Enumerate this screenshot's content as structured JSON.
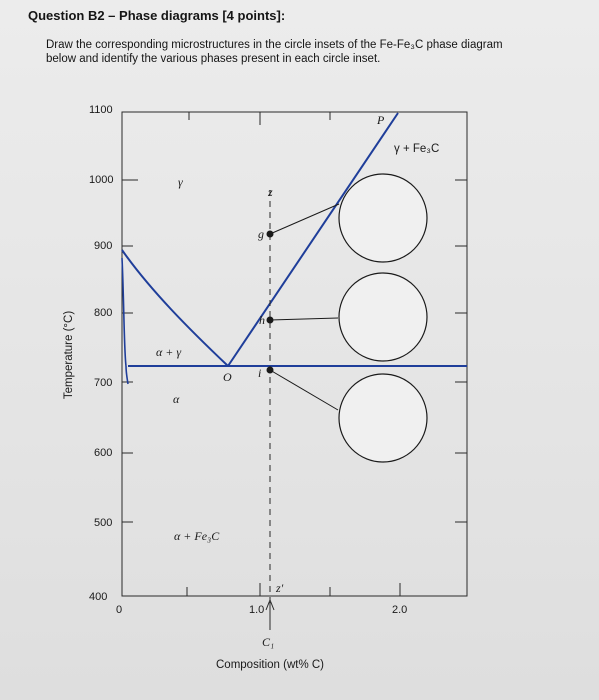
{
  "question": {
    "title": "Question B2 – Phase diagrams [4 points]:",
    "line1": "Draw the corresponding microstructures in the circle insets of the Fe-Fe₃C phase diagram",
    "line2": "below and identify the various phases present in each circle inset."
  },
  "chart_data": {
    "type": "diagram",
    "title": "",
    "xlabel": "Composition (wt% C)",
    "ylabel": "Temperature (°C)",
    "xlim": [
      0,
      2.5
    ],
    "ylim": [
      400,
      1100
    ],
    "x_ticks": [
      "0",
      "1.0",
      "2.0"
    ],
    "y_ticks": [
      "1100",
      "1000",
      "900",
      "800",
      "700",
      "600",
      "500",
      "400"
    ],
    "phase_labels": {
      "gamma": "γ",
      "gamma_fe3c": "γ + Fe₃C",
      "alpha_gamma": "α + γ",
      "alpha": "α",
      "alpha_fe3c": "α + Fe₃C"
    },
    "point_labels": {
      "P": "P",
      "O": "O",
      "g": "g",
      "h": "h",
      "i": "i",
      "z": "z",
      "z_prime": "z′",
      "c1": "C₁"
    },
    "eutectoid": {
      "composition": 0.76,
      "temperature": 727
    },
    "acm_line": [
      [
        0.76,
        727
      ],
      [
        2.14,
        1148
      ]
    ],
    "a3_curve": [
      [
        0,
        912
      ],
      [
        0.3,
        820
      ],
      [
        0.6,
        745
      ],
      [
        0.76,
        727
      ]
    ],
    "vertical_composition_c1": 1.2,
    "inspection_points": [
      {
        "name": "g",
        "temperature": 900
      },
      {
        "name": "h",
        "temperature": 790
      },
      {
        "name": "i",
        "temperature": 720
      }
    ],
    "circle_insets": 3
  }
}
